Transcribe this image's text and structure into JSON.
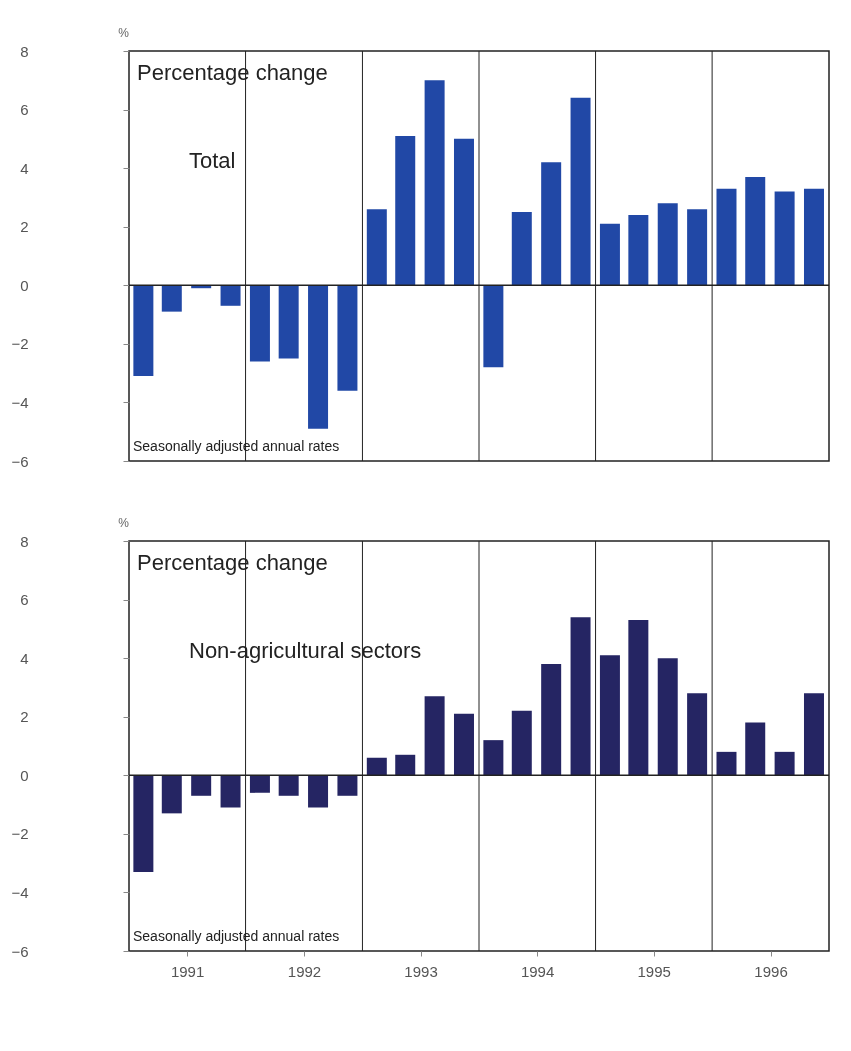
{
  "chart_data": [
    {
      "type": "bar",
      "ylabel": "%",
      "x": [
        "1991-02-15",
        "1991-05-15",
        "1991-08-15",
        "1991-11-15",
        "1992-02-15",
        "1992-05-15",
        "1992-08-15",
        "1992-11-15",
        "1993-02-15",
        "1993-05-15",
        "1993-08-15",
        "1993-11-15",
        "1994-02-15",
        "1994-05-15",
        "1994-08-15",
        "1994-11-15",
        "1995-02-15",
        "1995-05-15",
        "1995-08-15",
        "1995-11-15",
        "1996-02-15",
        "1996-05-15",
        "1996-08-15",
        "1996-11-15"
      ],
      "values": [
        -3.1,
        -0.9,
        -0.1,
        -0.7,
        -2.6,
        -2.5,
        -4.9,
        -3.6,
        2.6,
        5.1,
        7.0,
        5.0,
        -2.8,
        2.5,
        4.2,
        6.4,
        2.1,
        2.4,
        2.8,
        2.6,
        3.3,
        3.7,
        3.2,
        3.3
      ],
      "color": "#2148a6",
      "xlim": [
        "1991-01-01",
        "1997-01-01"
      ],
      "ylim": [
        -6,
        8
      ],
      "yticks": [
        -6,
        -4,
        -2,
        0,
        2,
        4,
        6,
        8
      ],
      "tick_labels": "y",
      "grid": false,
      "ref_lines": [
        {
          "axis": "y",
          "value": 0
        },
        {
          "axis": "x",
          "value": "1992-01-01"
        },
        {
          "axis": "x",
          "value": "1993-01-01"
        },
        {
          "axis": "x",
          "value": "1994-01-01"
        },
        {
          "axis": "x",
          "value": "1995-01-01"
        },
        {
          "axis": "x",
          "value": "1996-01-01"
        }
      ],
      "annotations": [
        "Percentage change",
        "Total",
        "Seasonally adjusted annual rates"
      ]
    },
    {
      "type": "bar",
      "ylabel": "%",
      "x": [
        "1991-02-15",
        "1991-05-15",
        "1991-08-15",
        "1991-11-15",
        "1992-02-15",
        "1992-05-15",
        "1992-08-15",
        "1992-11-15",
        "1993-02-15",
        "1993-05-15",
        "1993-08-15",
        "1993-11-15",
        "1994-02-15",
        "1994-05-15",
        "1994-08-15",
        "1994-11-15",
        "1995-02-15",
        "1995-05-15",
        "1995-08-15",
        "1995-11-15",
        "1996-02-15",
        "1996-05-15",
        "1996-08-15",
        "1996-11-15"
      ],
      "values": [
        -3.3,
        -1.3,
        -0.7,
        -1.1,
        -0.6,
        -0.7,
        -1.1,
        -0.7,
        0.6,
        0.7,
        2.7,
        2.1,
        1.2,
        2.2,
        3.8,
        5.4,
        4.1,
        5.3,
        4.0,
        2.8,
        0.8,
        1.8,
        0.8,
        2.8
      ],
      "color": "#252563",
      "xlim": [
        "1991-01-01",
        "1997-01-01"
      ],
      "xticks": [
        {
          "value": "1991-07-02",
          "label": "1991"
        },
        {
          "value": "1992-07-02",
          "label": "1992"
        },
        {
          "value": "1993-07-02",
          "label": "1993"
        },
        {
          "value": "1994-07-02",
          "label": "1994"
        },
        {
          "value": "1995-07-02",
          "label": "1995"
        },
        {
          "value": "1996-07-02",
          "label": "1996"
        }
      ],
      "ylim": [
        -6,
        8
      ],
      "yticks": [
        -6,
        -4,
        -2,
        0,
        2,
        4,
        6,
        8
      ],
      "grid": false,
      "ref_lines": [
        {
          "axis": "y",
          "value": 0
        },
        {
          "axis": "x",
          "value": "1992-01-01"
        },
        {
          "axis": "x",
          "value": "1993-01-01"
        },
        {
          "axis": "x",
          "value": "1994-01-01"
        },
        {
          "axis": "x",
          "value": "1995-01-01"
        },
        {
          "axis": "x",
          "value": "1996-01-01"
        }
      ],
      "annotations": [
        "Percentage change",
        "Non-agricultural sectors",
        "Seasonally adjusted annual rates"
      ]
    }
  ]
}
